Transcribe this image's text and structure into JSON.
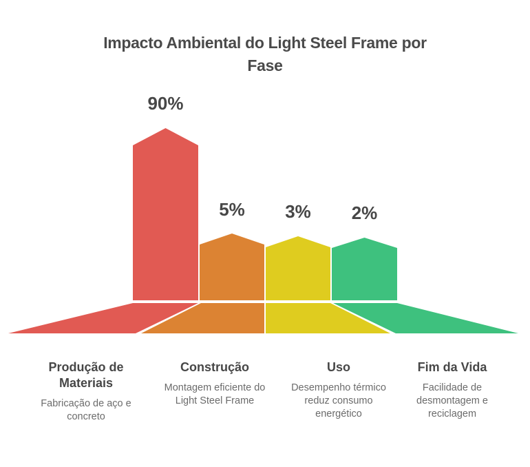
{
  "title_lines": [
    "Impacto Ambiental do Light Steel Frame por",
    "Fase"
  ],
  "chart_data": {
    "type": "bar",
    "title": "Impacto Ambiental do Light Steel Frame por Fase",
    "categories": [
      "Produção de Materiais",
      "Construção",
      "Uso",
      "Fim da Vida"
    ],
    "values": [
      90,
      5,
      3,
      2
    ],
    "unit": "%",
    "value_labels": [
      "90%",
      "5%",
      "3%",
      "2%"
    ],
    "descriptions": [
      "Fabricação de aço e concreto",
      "Montagem eficiente do Light Steel Frame",
      "Desempenho térmico reduz consumo energético",
      "Facilidade de desmontagem e reciclagem"
    ],
    "colors": [
      "#E15A53",
      "#DC8333",
      "#DFCC1F",
      "#3EC17E"
    ],
    "legend": false,
    "grid": false,
    "background": "#FFFFFF",
    "text_colors": {
      "title": "#4A4A4A",
      "value_label": "#474747",
      "category": "#474747",
      "description": "#6B6B6B"
    }
  }
}
